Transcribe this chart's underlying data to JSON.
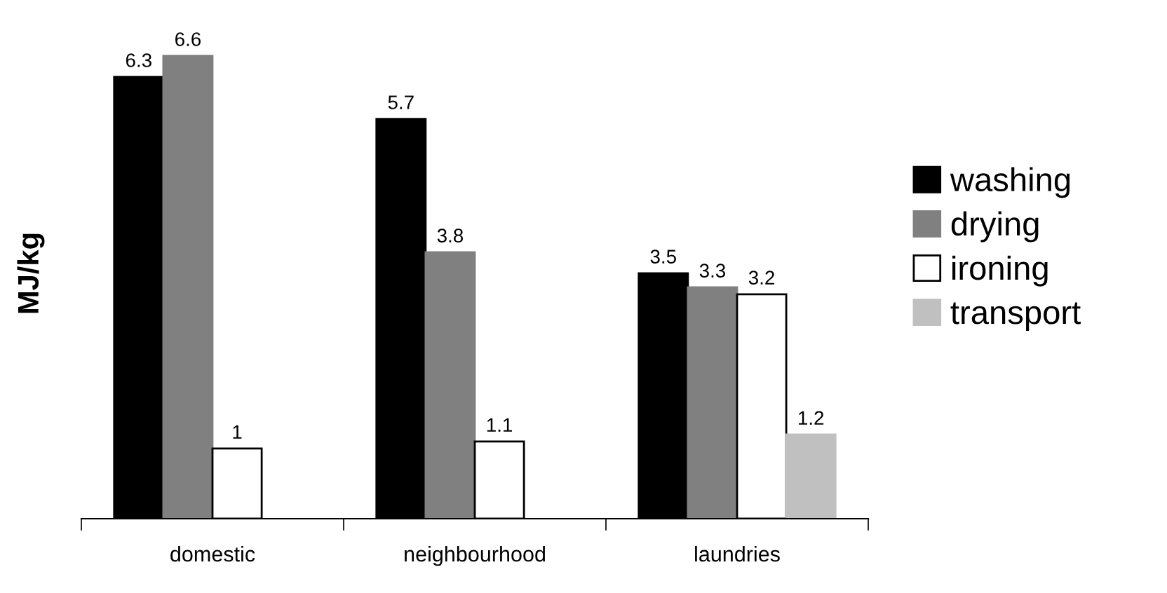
{
  "chart_data": {
    "type": "bar",
    "ylabel": "MJ/kg",
    "categories": [
      "domestic",
      "neighbourhood",
      "laundries"
    ],
    "series": [
      {
        "name": "washing",
        "color": "#000000",
        "values": [
          6.3,
          5.7,
          3.5
        ]
      },
      {
        "name": "drying",
        "color": "#808080",
        "values": [
          6.6,
          3.8,
          3.3
        ]
      },
      {
        "name": "ironing",
        "color": "#ffffff",
        "values": [
          1,
          1.1,
          3.2
        ]
      },
      {
        "name": "transport",
        "color": "#c0c0c0",
        "values": [
          null,
          null,
          1.2
        ]
      }
    ],
    "data_labels": true,
    "grid": false,
    "legend": "right"
  }
}
